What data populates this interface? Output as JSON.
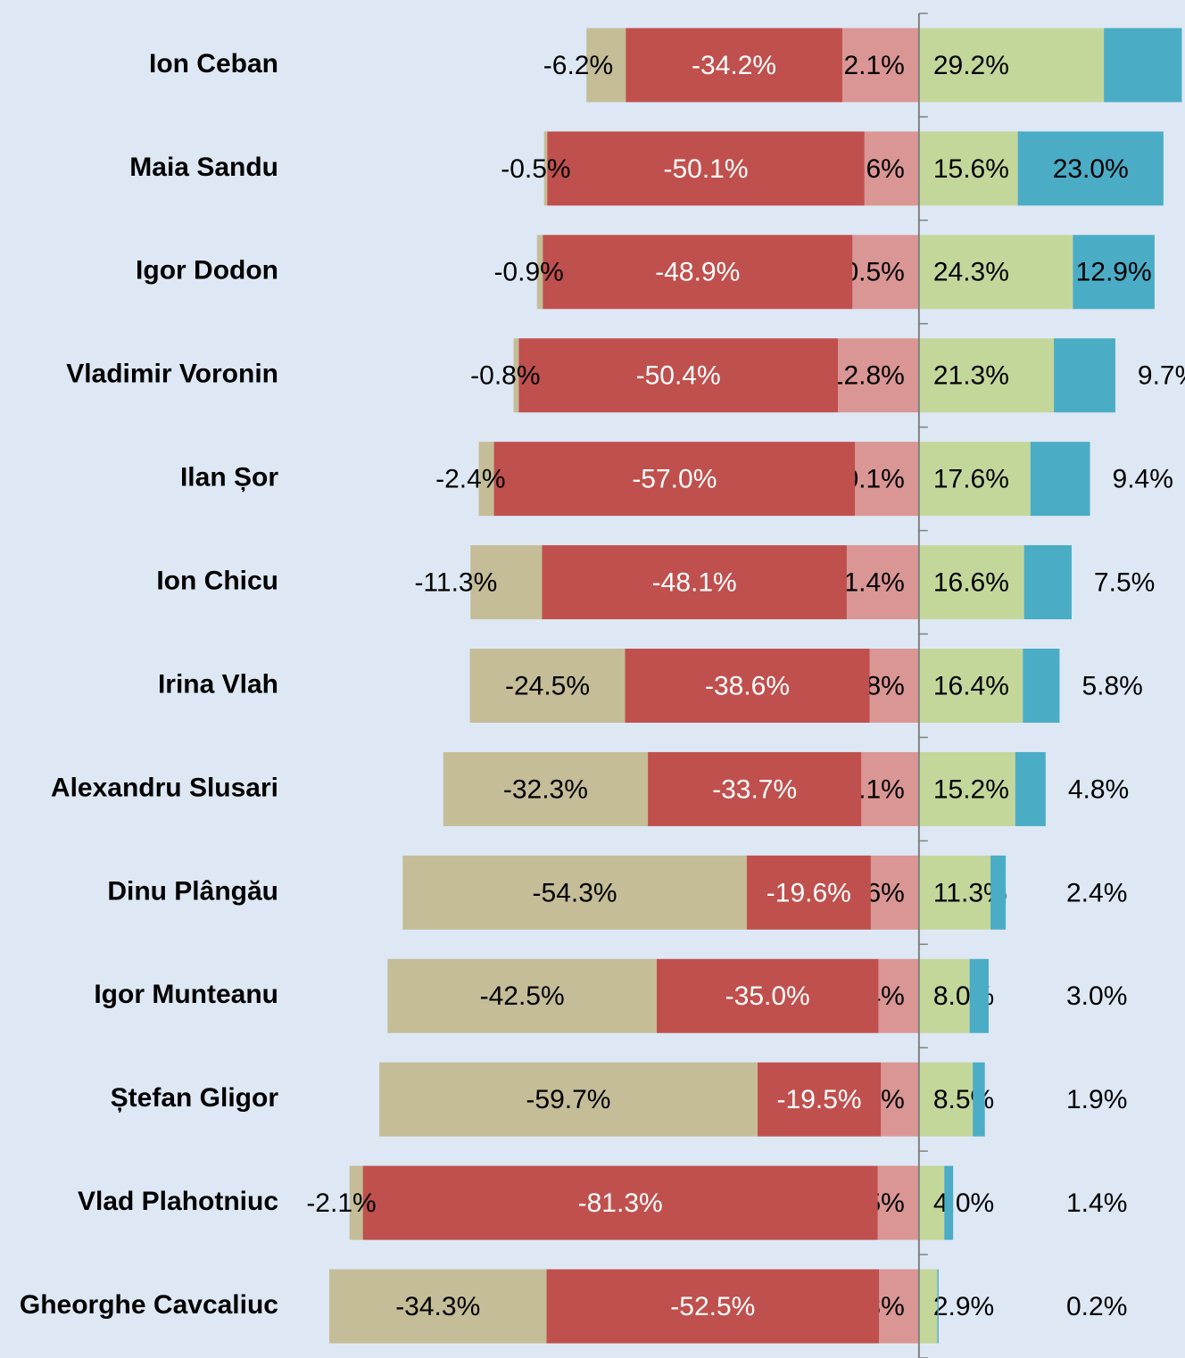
{
  "chart_data": {
    "type": "diverging_stacked_bar",
    "categories": [
      "Ion Ceban",
      "Maia Sandu",
      "Igor Dodon",
      "Vladimir Voronin",
      "Ilan Șor",
      "Ion Chicu",
      "Irina Vlah",
      "Alexandru Slusari",
      "Dinu Plângău",
      "Igor Munteanu",
      "Ștefan Gligor",
      "Vlad Plahotniuc",
      "Gheorghe Cavcaliuc"
    ],
    "xlim": [
      -100,
      42
    ],
    "series": [
      {
        "color": "#da9694",
        "label_color": "#000000",
        "values": [
          -12.1,
          -8.6,
          -10.5,
          -12.8,
          -10.1,
          -11.4,
          -7.8,
          -9.1,
          -7.6,
          -6.4,
          -6.0,
          -6.5,
          -6.3
        ],
        "value_labels": [
          "-12.1%",
          "-8.6%",
          "-10.5%",
          "-12.8%",
          "-10.1%",
          "-11.4%",
          "-7.8%",
          "-9.1%",
          "-7.6%",
          "-6.4%",
          "-6.0%",
          "-6.5%",
          "-6.3%"
        ]
      },
      {
        "color": "#c0504d",
        "label_color": "#ffffff",
        "values": [
          -34.2,
          -50.1,
          -48.9,
          -50.4,
          -57.0,
          -48.1,
          -38.6,
          -33.7,
          -19.6,
          -35.0,
          -19.5,
          -81.3,
          -52.5
        ],
        "value_labels": [
          "-34.2%",
          "-50.1%",
          "-48.9%",
          "-50.4%",
          "-57.0%",
          "-48.1%",
          "-38.6%",
          "-33.7%",
          "-19.6%",
          "-35.0%",
          "-19.5%",
          "-81.3%",
          "-52.5%"
        ]
      },
      {
        "color": "#c4bd97",
        "label_color": "#000000",
        "values": [
          -6.2,
          -0.5,
          -0.9,
          -0.8,
          -2.4,
          -11.3,
          -24.5,
          -32.3,
          -54.3,
          -42.5,
          -59.7,
          -2.1,
          -34.3
        ],
        "value_labels": [
          "-6.2%",
          "-0.5%",
          "-0.9%",
          "-0.8%",
          "-2.4%",
          "-11.3%",
          "-24.5%",
          "-32.3%",
          "-54.3%",
          "-42.5%",
          "-59.7%",
          "-2.1%",
          "-34.3%"
        ]
      },
      {
        "color": "#c4d79b",
        "label_color": "#000000",
        "values": [
          29.2,
          15.6,
          24.3,
          21.3,
          17.6,
          16.6,
          16.4,
          15.2,
          11.3,
          8.0,
          8.5,
          4.0,
          2.9
        ],
        "value_labels": [
          "29.2%",
          "15.6%",
          "24.3%",
          "21.3%",
          "17.6%",
          "16.6%",
          "16.4%",
          "15.2%",
          "11.3%",
          "8.0%",
          "8.5%",
          "4.0%",
          "2.9%"
        ]
      },
      {
        "color": "#4bacc6",
        "label_color": "#000000",
        "values": [
          12.3,
          23.0,
          12.9,
          9.7,
          9.4,
          7.5,
          5.8,
          4.8,
          2.4,
          3.0,
          1.9,
          1.4,
          0.2
        ],
        "value_labels": [
          "12.3%",
          "23.0%",
          "12.9%",
          "9.7%",
          "9.4%",
          "7.5%",
          "5.8%",
          "4.8%",
          "2.4%",
          "3.0%",
          "1.9%",
          "1.4%",
          "0.2%"
        ]
      }
    ]
  }
}
